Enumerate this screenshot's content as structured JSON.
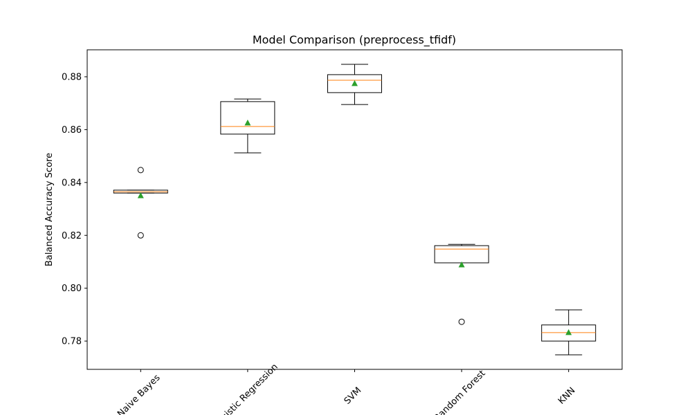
{
  "chart_data": {
    "type": "box",
    "title": "Model Comparison (preprocess_tfidf)",
    "ylabel": "Balanced Accuracy Score",
    "categories": [
      "Naive Bayes",
      "Logistic Regression",
      "SVM",
      "Random Forest",
      "KNN"
    ],
    "boxes": [
      {
        "whislo": 0.836,
        "q1": 0.836,
        "med": 0.8365,
        "q3": 0.8371,
        "whishi": 0.8371,
        "mean": 0.835,
        "fliers": [
          0.8447,
          0.82
        ]
      },
      {
        "whislo": 0.8512,
        "q1": 0.8583,
        "med": 0.8612,
        "q3": 0.8706,
        "whishi": 0.8716,
        "mean": 0.8625,
        "fliers": []
      },
      {
        "whislo": 0.8695,
        "q1": 0.874,
        "med": 0.8787,
        "q3": 0.8808,
        "whishi": 0.8847,
        "mean": 0.8774,
        "fliers": []
      },
      {
        "whislo": 0.8096,
        "q1": 0.8096,
        "med": 0.8148,
        "q3": 0.8161,
        "whishi": 0.8166,
        "mean": 0.8088,
        "fliers": [
          0.7873
        ]
      },
      {
        "whislo": 0.7748,
        "q1": 0.78,
        "med": 0.7832,
        "q3": 0.7861,
        "whishi": 0.7918,
        "mean": 0.7832,
        "fliers": []
      }
    ],
    "median_color": "#ff7f0e",
    "mean_color": "#2ca02c",
    "box_color": "#000000",
    "ylim": [
      0.7693,
      0.8902
    ],
    "yticks": [
      0.78,
      {
        "value": 0.8,
        "label": "0.80"
      },
      0.82,
      0.84,
      0.86,
      0.88
    ]
  }
}
